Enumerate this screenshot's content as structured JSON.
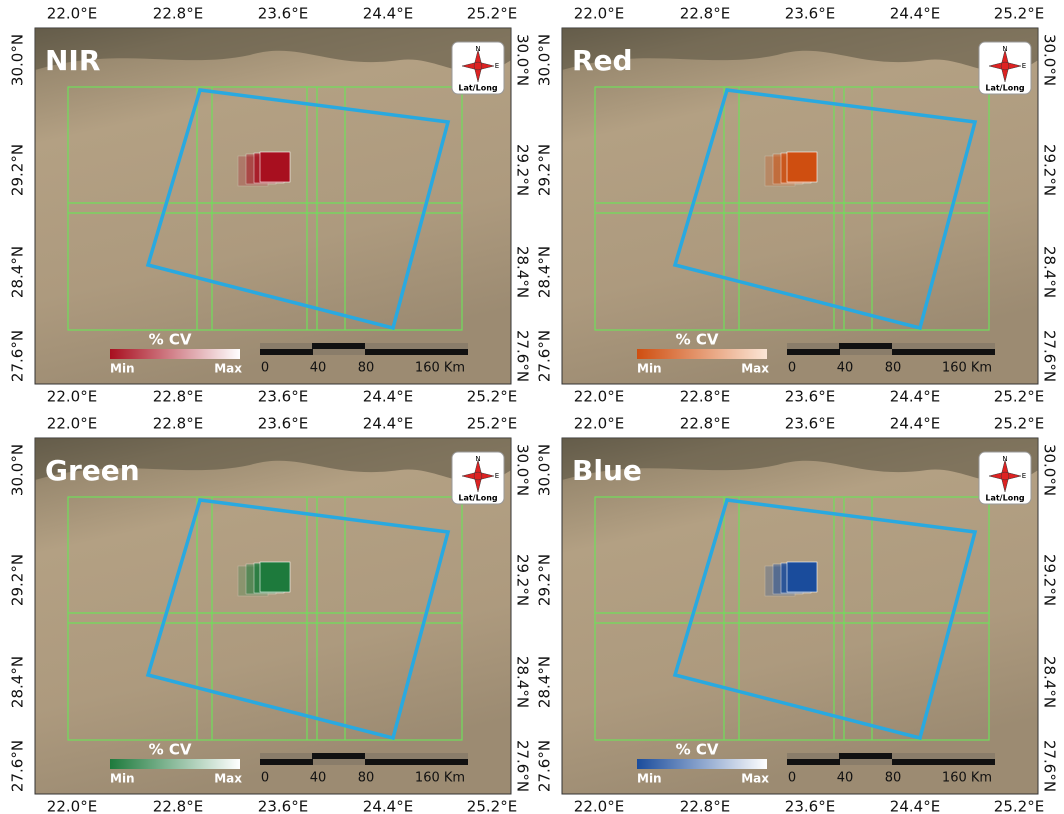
{
  "panels": [
    {
      "band": "NIR",
      "legend": {
        "title": "% CV",
        "min": "Min",
        "max": "Max"
      }
    },
    {
      "band": "Red",
      "legend": {
        "title": "% CV",
        "min": "Min",
        "max": "Max"
      }
    },
    {
      "band": "Green",
      "legend": {
        "title": "% CV",
        "min": "Min",
        "max": "Max"
      }
    },
    {
      "band": "Blue",
      "legend": {
        "title": "% CV",
        "min": "Min",
        "max": "Max"
      }
    }
  ],
  "lon_labels": [
    "22.0°E",
    "22.8°E",
    "23.6°E",
    "24.4°E",
    "25.2°E"
  ],
  "lat_labels": [
    "30.0°N",
    "29.2°N",
    "28.4°N",
    "27.6°N"
  ],
  "scale_bar": {
    "labels": [
      "0",
      "40",
      "80",
      "160 Km"
    ]
  },
  "compass": {
    "north": "N",
    "east": "E",
    "label": "Lat/Long"
  }
}
